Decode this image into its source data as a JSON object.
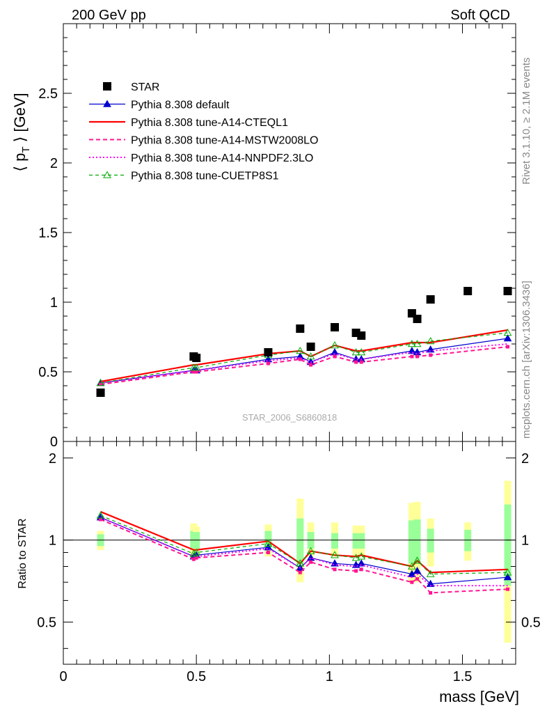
{
  "header": {
    "left": "200 GeV pp",
    "right": "Soft QCD"
  },
  "side": {
    "rivet": "Rivet 3.1.10, ≥ 2.1M events",
    "mcplots": "mcplots.cern.ch [arXiv:1306.3436]"
  },
  "watermark": "STAR_2006_S6860818",
  "colors": {
    "star": "#000000",
    "default": "#0000cc",
    "cteql1": "#ff0000",
    "mstw": "#ff1493",
    "nnpdf": "#ff00ff",
    "cuetp": "#00aa00",
    "band_yellow": "#ffff99",
    "band_green": "#99ff99"
  },
  "chart_data": {
    "type": "line",
    "xlabel": "mass [GeV]",
    "xlim": [
      0,
      1.7
    ],
    "x_ticks": [
      "0",
      "0.5",
      "1",
      "1.5"
    ],
    "main": {
      "ylabel": "⟨ p_T ⟩ [GeV]",
      "ylim": [
        0,
        3.0
      ],
      "y_ticks": [
        "0",
        "0.5",
        "1",
        "1.5",
        "2",
        "2.5"
      ]
    },
    "ratio": {
      "ylabel": "Ratio to STAR",
      "ylim": [
        0.35,
        2.3
      ],
      "y_ticks": [
        "0.5",
        "1",
        "2"
      ]
    },
    "legend": {
      "placement": "top-left",
      "entries": [
        "STAR",
        "Pythia 8.308 default",
        "Pythia 8.308 tune-A14-CTEQL1",
        "Pythia 8.308 tune-A14-MSTW2008LO",
        "Pythia 8.308 tune-A14-NNPDF2.3LO",
        "Pythia 8.308 tune-CUETP8S1"
      ]
    },
    "data": {
      "name": "STAR",
      "x": [
        0.14,
        0.49,
        0.5,
        0.77,
        0.89,
        0.93,
        1.02,
        1.1,
        1.12,
        1.31,
        1.33,
        1.38,
        1.52,
        1.67
      ],
      "y": [
        0.35,
        0.61,
        0.6,
        0.64,
        0.81,
        0.68,
        0.82,
        0.78,
        0.76,
        0.92,
        0.88,
        1.02,
        1.08,
        1.08
      ]
    },
    "series": [
      {
        "name": "Pythia 8.308 default",
        "x": [
          0.14,
          0.49,
          0.5,
          0.77,
          0.89,
          0.93,
          1.02,
          1.1,
          1.12,
          1.31,
          1.33,
          1.38,
          1.67
        ],
        "y": [
          0.42,
          0.51,
          0.51,
          0.59,
          0.61,
          0.57,
          0.64,
          0.59,
          0.59,
          0.65,
          0.64,
          0.66,
          0.74
        ],
        "ratio": [
          1.21,
          0.87,
          0.88,
          0.94,
          0.79,
          0.86,
          0.82,
          0.81,
          0.82,
          0.75,
          0.77,
          0.69,
          0.73
        ]
      },
      {
        "name": "Pythia 8.308 tune-A14-CTEQL1",
        "x": [
          0.14,
          0.49,
          0.5,
          0.77,
          0.89,
          0.93,
          1.02,
          1.1,
          1.12,
          1.31,
          1.33,
          1.38,
          1.67
        ],
        "y": [
          0.43,
          0.55,
          0.55,
          0.63,
          0.65,
          0.61,
          0.69,
          0.65,
          0.65,
          0.71,
          0.71,
          0.71,
          0.8
        ],
        "ratio": [
          1.27,
          0.92,
          0.92,
          0.99,
          0.82,
          0.91,
          0.88,
          0.87,
          0.88,
          0.8,
          0.84,
          0.76,
          0.78
        ]
      },
      {
        "name": "Pythia 8.308 tune-A14-MSTW2008LO",
        "x": [
          0.14,
          0.49,
          0.5,
          0.77,
          0.89,
          0.93,
          1.02,
          1.1,
          1.12,
          1.31,
          1.33,
          1.38,
          1.67
        ],
        "y": [
          0.41,
          0.5,
          0.5,
          0.56,
          0.59,
          0.55,
          0.61,
          0.57,
          0.57,
          0.61,
          0.61,
          0.62,
          0.68
        ],
        "ratio": [
          1.19,
          0.85,
          0.86,
          0.9,
          0.76,
          0.83,
          0.78,
          0.77,
          0.78,
          0.7,
          0.72,
          0.64,
          0.66
        ]
      },
      {
        "name": "Pythia 8.308 tune-A14-NNPDF2.3LO",
        "x": [
          0.14,
          0.49,
          0.5,
          0.77,
          0.89,
          0.93,
          1.02,
          1.1,
          1.12,
          1.31,
          1.33,
          1.38,
          1.67
        ],
        "y": [
          0.42,
          0.51,
          0.51,
          0.58,
          0.6,
          0.57,
          0.63,
          0.59,
          0.59,
          0.64,
          0.63,
          0.65,
          0.7
        ],
        "ratio": [
          1.21,
          0.87,
          0.87,
          0.93,
          0.79,
          0.86,
          0.81,
          0.8,
          0.81,
          0.73,
          0.75,
          0.68,
          0.68
        ]
      },
      {
        "name": "Pythia 8.308 tune-CUETP8S1",
        "x": [
          0.14,
          0.49,
          0.5,
          0.77,
          0.89,
          0.93,
          1.02,
          1.1,
          1.12,
          1.31,
          1.33,
          1.38,
          1.67
        ],
        "y": [
          0.42,
          0.53,
          0.53,
          0.62,
          0.65,
          0.61,
          0.69,
          0.64,
          0.64,
          0.7,
          0.7,
          0.72,
          0.78
        ],
        "ratio": [
          1.23,
          0.89,
          0.9,
          0.97,
          0.82,
          0.91,
          0.88,
          0.86,
          0.87,
          0.8,
          0.84,
          0.75,
          0.76
        ]
      }
    ],
    "uncertainty_bands": {
      "x": [
        0.14,
        0.49,
        0.5,
        0.77,
        0.89,
        0.93,
        1.02,
        1.1,
        1.12,
        1.31,
        1.33,
        1.38,
        1.52,
        1.67
      ],
      "yellow": [
        [
          0.92,
          1.08
        ],
        [
          0.86,
          1.15
        ],
        [
          0.88,
          1.12
        ],
        [
          0.87,
          1.14
        ],
        [
          0.7,
          1.42
        ],
        [
          0.87,
          1.16
        ],
        [
          0.87,
          1.16
        ],
        [
          0.87,
          1.13
        ],
        [
          0.87,
          1.13
        ],
        [
          0.7,
          1.37
        ],
        [
          0.7,
          1.38
        ],
        [
          0.8,
          1.2
        ],
        [
          0.84,
          1.16
        ],
        [
          0.42,
          1.65
        ]
      ],
      "green": [
        [
          0.95,
          1.05
        ],
        [
          0.92,
          1.08
        ],
        [
          0.93,
          1.07
        ],
        [
          0.92,
          1.08
        ],
        [
          0.8,
          1.2
        ],
        [
          0.93,
          1.07
        ],
        [
          0.93,
          1.06
        ],
        [
          0.93,
          1.06
        ],
        [
          0.93,
          1.06
        ],
        [
          0.82,
          1.18
        ],
        [
          0.82,
          1.19
        ],
        [
          0.9,
          1.1
        ],
        [
          0.91,
          1.09
        ],
        [
          0.68,
          1.35
        ]
      ]
    }
  }
}
